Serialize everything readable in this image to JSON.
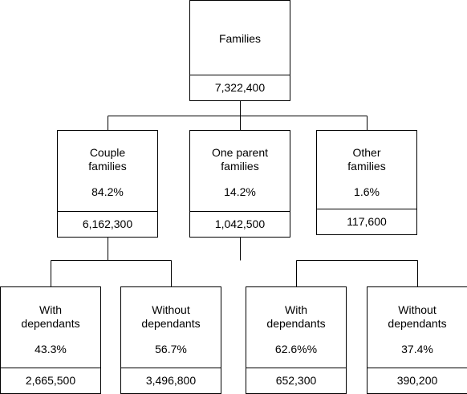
{
  "root": {
    "title": "Families",
    "value": "7,322,400"
  },
  "level2": {
    "couple": {
      "title_line1": "Couple",
      "title_line2": "families",
      "percent": "84.2%",
      "value": "6,162,300"
    },
    "one_parent": {
      "title_line1": "One parent",
      "title_line2": "families",
      "percent": "14.2%",
      "value": "1,042,500"
    },
    "other": {
      "title_line1": "Other",
      "title_line2": "families",
      "percent": "1.6%",
      "value": "117,600"
    }
  },
  "level3": {
    "couple_with": {
      "title_line1": "With",
      "title_line2": "dependants",
      "percent": "43.3%",
      "value": "2,665,500"
    },
    "couple_without": {
      "title_line1": "Without",
      "title_line2": "dependants",
      "percent": "56.7%",
      "value": "3,496,800"
    },
    "one_parent_with": {
      "title_line1": "With",
      "title_line2": "dependants",
      "percent": "62.6%%",
      "value": "652,300"
    },
    "one_parent_without": {
      "title_line1": "Without",
      "title_line2": "dependants",
      "percent": "37.4%",
      "value": "390,200"
    }
  }
}
